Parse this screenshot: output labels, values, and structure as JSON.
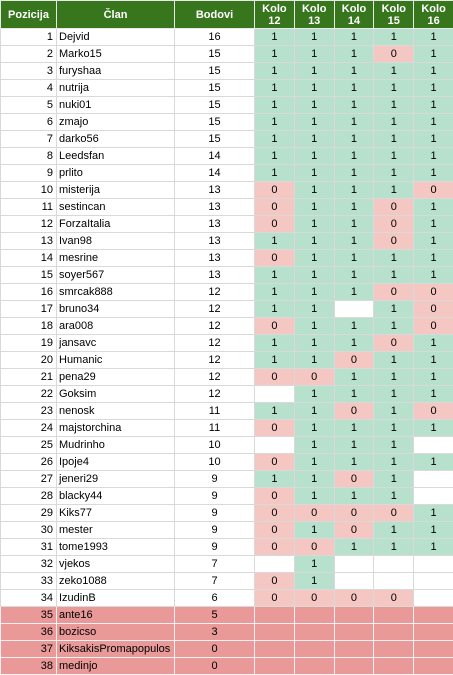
{
  "headers": {
    "position": "Pozicija",
    "member": "Član",
    "points": "Bodovi",
    "rounds": [
      {
        "line1": "Kolo",
        "line2": "12"
      },
      {
        "line1": "Kolo",
        "line2": "13"
      },
      {
        "line1": "Kolo",
        "line2": "14"
      },
      {
        "line1": "Kolo",
        "line2": "15"
      },
      {
        "line1": "Kolo",
        "line2": "16"
      }
    ]
  },
  "colors": {
    "header_bg": "#38761d",
    "cell_correct": "#b7e1cd",
    "cell_wrong": "#f4c7c3",
    "eliminated_row": "#ea9999"
  },
  "rows": [
    {
      "pos": "1",
      "name": "Dejvid",
      "points": "16",
      "rounds": [
        "1",
        "1",
        "1",
        "1",
        "1"
      ]
    },
    {
      "pos": "2",
      "name": "Marko15",
      "points": "15",
      "rounds": [
        "1",
        "1",
        "1",
        "0",
        "1"
      ]
    },
    {
      "pos": "3",
      "name": "furyshaa",
      "points": "15",
      "rounds": [
        "1",
        "1",
        "1",
        "1",
        "1"
      ]
    },
    {
      "pos": "4",
      "name": "nutrija",
      "points": "15",
      "rounds": [
        "1",
        "1",
        "1",
        "1",
        "1"
      ]
    },
    {
      "pos": "5",
      "name": "nuki01",
      "points": "15",
      "rounds": [
        "1",
        "1",
        "1",
        "1",
        "1"
      ]
    },
    {
      "pos": "6",
      "name": "zmajo",
      "points": "15",
      "rounds": [
        "1",
        "1",
        "1",
        "1",
        "1"
      ]
    },
    {
      "pos": "7",
      "name": "darko56",
      "points": "15",
      "rounds": [
        "1",
        "1",
        "1",
        "1",
        "1"
      ]
    },
    {
      "pos": "8",
      "name": "Leedsfan",
      "points": "14",
      "rounds": [
        "1",
        "1",
        "1",
        "1",
        "1"
      ]
    },
    {
      "pos": "9",
      "name": "prlito",
      "points": "14",
      "rounds": [
        "1",
        "1",
        "1",
        "1",
        "1"
      ]
    },
    {
      "pos": "10",
      "name": "misterija",
      "points": "13",
      "rounds": [
        "0",
        "1",
        "1",
        "1",
        "0"
      ]
    },
    {
      "pos": "11",
      "name": "sestincan",
      "points": "13",
      "rounds": [
        "0",
        "1",
        "1",
        "0",
        "1"
      ]
    },
    {
      "pos": "12",
      "name": "ForzaItalia",
      "points": "13",
      "rounds": [
        "0",
        "1",
        "1",
        "0",
        "1"
      ]
    },
    {
      "pos": "13",
      "name": "Ivan98",
      "points": "13",
      "rounds": [
        "1",
        "1",
        "1",
        "0",
        "1"
      ]
    },
    {
      "pos": "14",
      "name": "mesrine",
      "points": "13",
      "rounds": [
        "0",
        "1",
        "1",
        "1",
        "1"
      ]
    },
    {
      "pos": "15",
      "name": "soyer567",
      "points": "13",
      "rounds": [
        "1",
        "1",
        "1",
        "1",
        "1"
      ]
    },
    {
      "pos": "16",
      "name": "smrcak888",
      "points": "12",
      "rounds": [
        "1",
        "1",
        "1",
        "0",
        "0"
      ]
    },
    {
      "pos": "17",
      "name": "bruno34",
      "points": "12",
      "rounds": [
        "1",
        "1",
        "",
        "1",
        "0"
      ]
    },
    {
      "pos": "18",
      "name": "ara008",
      "points": "12",
      "rounds": [
        "0",
        "1",
        "1",
        "1",
        "0"
      ]
    },
    {
      "pos": "19",
      "name": "jansavc",
      "points": "12",
      "rounds": [
        "1",
        "1",
        "1",
        "0",
        "1"
      ]
    },
    {
      "pos": "20",
      "name": "Humanic",
      "points": "12",
      "rounds": [
        "1",
        "1",
        "0",
        "1",
        "1"
      ]
    },
    {
      "pos": "21",
      "name": "pena29",
      "points": "12",
      "rounds": [
        "0",
        "0",
        "1",
        "1",
        "1"
      ]
    },
    {
      "pos": "22",
      "name": "Goksim",
      "points": "12",
      "rounds": [
        "",
        "1",
        "1",
        "1",
        "1"
      ]
    },
    {
      "pos": "23",
      "name": "nenosk",
      "points": "11",
      "rounds": [
        "1",
        "1",
        "0",
        "1",
        "0"
      ]
    },
    {
      "pos": "24",
      "name": "majstorchina",
      "points": "11",
      "rounds": [
        "0",
        "1",
        "1",
        "1",
        "1"
      ]
    },
    {
      "pos": "25",
      "name": "Mudrinho",
      "points": "10",
      "rounds": [
        "",
        "1",
        "1",
        "1",
        ""
      ]
    },
    {
      "pos": "26",
      "name": "Ipoje4",
      "points": "10",
      "rounds": [
        "0",
        "1",
        "1",
        "1",
        "1"
      ]
    },
    {
      "pos": "27",
      "name": "jeneri29",
      "points": "9",
      "rounds": [
        "1",
        "1",
        "0",
        "1",
        ""
      ]
    },
    {
      "pos": "28",
      "name": "blacky44",
      "points": "9",
      "rounds": [
        "0",
        "1",
        "1",
        "1",
        ""
      ]
    },
    {
      "pos": "29",
      "name": "Kiks77",
      "points": "9",
      "rounds": [
        "0",
        "0",
        "0",
        "0",
        "1"
      ]
    },
    {
      "pos": "30",
      "name": "mester",
      "points": "9",
      "rounds": [
        "0",
        "1",
        "0",
        "1",
        "1"
      ]
    },
    {
      "pos": "31",
      "name": "tome1993",
      "points": "9",
      "rounds": [
        "0",
        "0",
        "1",
        "1",
        "1"
      ]
    },
    {
      "pos": "32",
      "name": "vjekos",
      "points": "7",
      "rounds": [
        "",
        "1",
        "",
        "",
        ""
      ]
    },
    {
      "pos": "33",
      "name": "zeko1088",
      "points": "7",
      "rounds": [
        "0",
        "1",
        "",
        "",
        ""
      ]
    },
    {
      "pos": "34",
      "name": "IzudinB",
      "points": "6",
      "rounds": [
        "0",
        "0",
        "0",
        "0",
        ""
      ]
    },
    {
      "pos": "35",
      "name": "ante16",
      "points": "5",
      "eliminated": true,
      "rounds": [
        "",
        "",
        "",
        "",
        ""
      ]
    },
    {
      "pos": "36",
      "name": "bozicso",
      "points": "3",
      "eliminated": true,
      "rounds": [
        "",
        "",
        "",
        "",
        ""
      ]
    },
    {
      "pos": "37",
      "name": "KiksakisPromapopulos",
      "points": "0",
      "eliminated": true,
      "rounds": [
        "",
        "",
        "",
        "",
        ""
      ]
    },
    {
      "pos": "38",
      "name": "medinjo",
      "points": "0",
      "eliminated": true,
      "rounds": [
        "",
        "",
        "",
        "",
        ""
      ]
    }
  ]
}
